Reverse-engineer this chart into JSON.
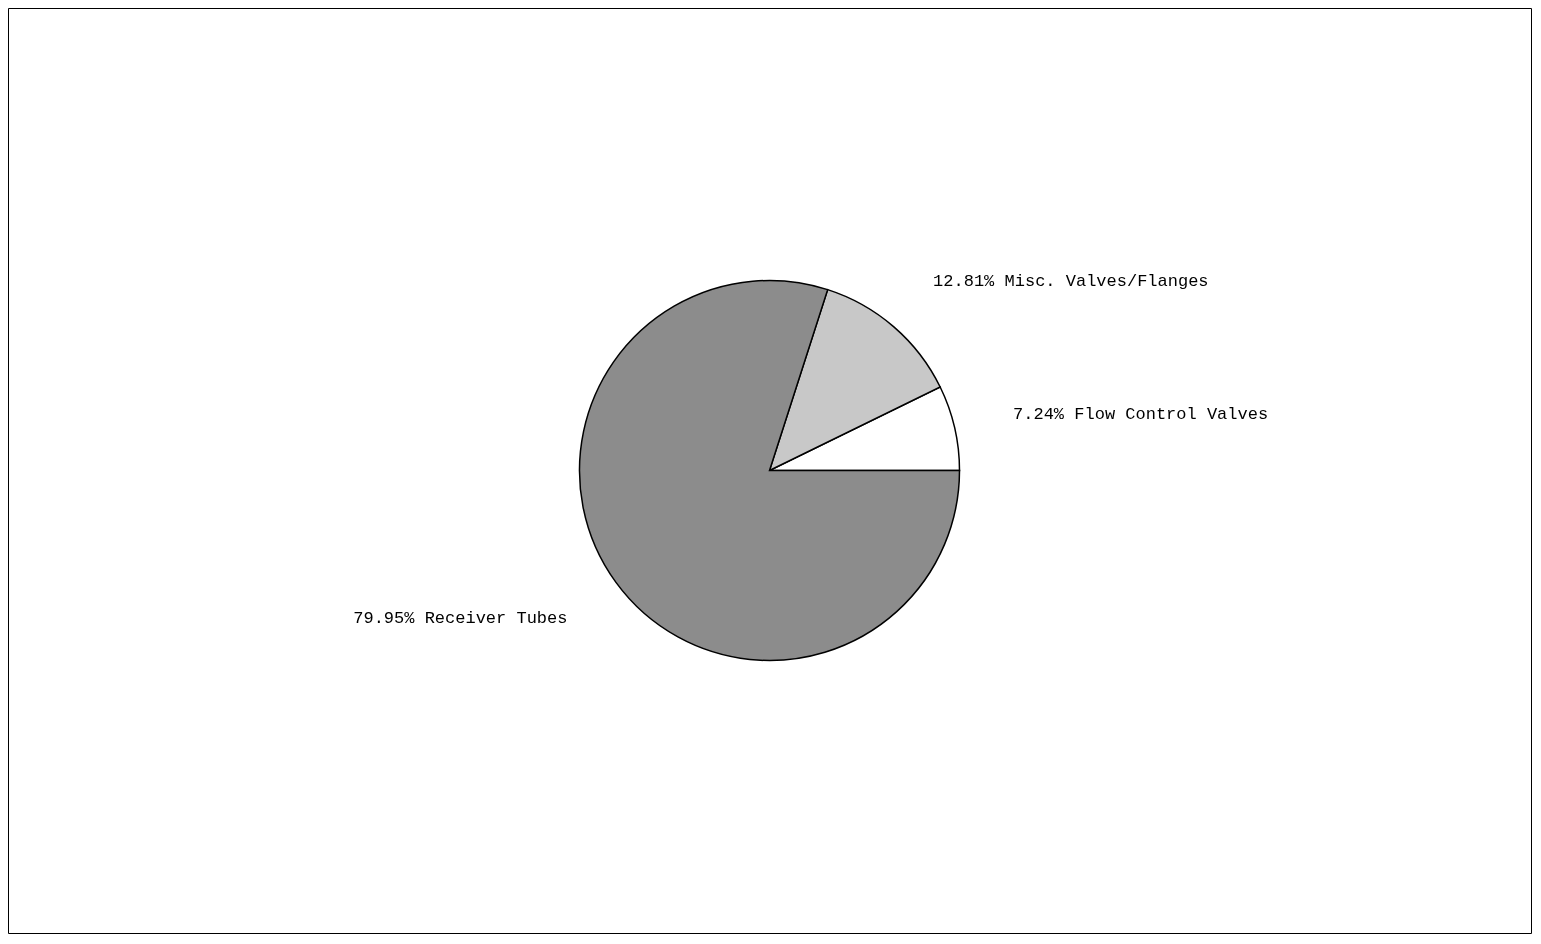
{
  "chart_data": {
    "type": "pie",
    "categories": [
      "7.24% Flow Control Valves",
      "12.81% Misc. Valves/Flanges",
      "79.95% Receiver Tubes"
    ],
    "values": [
      7.24,
      12.81,
      79.95
    ],
    "colors": [
      "#ffffff",
      "#c8c8c8",
      "#8c8c8c"
    ]
  }
}
